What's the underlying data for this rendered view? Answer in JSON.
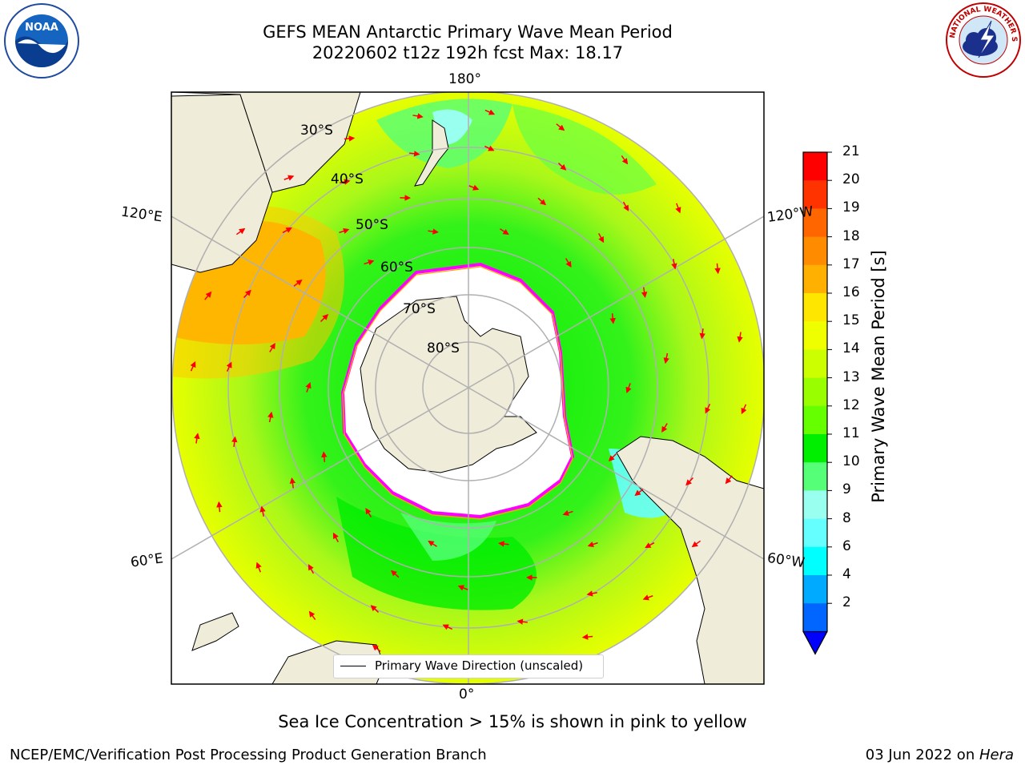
{
  "title": {
    "line1": "GEFS MEAN Antarctic Primary Wave Mean Period",
    "line2": "20220602 t12z 192h fcst   Max: 18.17"
  },
  "map": {
    "projection": "south-polar-stereographic",
    "longitude_labels": {
      "top": "180°",
      "bottom": "0°",
      "upper_left": "120°E",
      "upper_right": "120°W",
      "lower_left": "60°E",
      "lower_right": "60°W"
    },
    "latitude_labels": [
      "30°S",
      "40°S",
      "50°S",
      "60°S",
      "70°S",
      "80°S"
    ],
    "legend_label": "Primary Wave Direction (unscaled)",
    "arrow_color": "#ff0000",
    "land_color": "#efecd9",
    "ice_colors": [
      "#ff00ff",
      "#ffa500",
      "#ffff00"
    ]
  },
  "colorbar": {
    "label": "Primary Wave Mean Period [s]",
    "ticks": [
      "21",
      "20",
      "19",
      "18",
      "17",
      "16",
      "15",
      "14",
      "13",
      "12",
      "11",
      "10",
      "9",
      "8",
      "6",
      "4",
      "2"
    ],
    "colors": [
      "#ff0000",
      "#ff3300",
      "#ff6600",
      "#ff8c00",
      "#ffb000",
      "#ffe600",
      "#f0ff00",
      "#ccff00",
      "#99ff00",
      "#66ff00",
      "#00ee00",
      "#55ff77",
      "#99ffee",
      "#66ffff",
      "#00ffff",
      "#00aaff",
      "#0066ff"
    ],
    "extend_color": "#0000ff"
  },
  "subtitle": "Sea Ice Concentration > 15% is shown in pink to yellow",
  "footer": {
    "left": "NCEP/EMC/Verification Post Processing Product Generation Branch",
    "date": "03 Jun 2022 on ",
    "machine": "Hera"
  },
  "logos": {
    "left_text": "NOAA",
    "right_text": "NATIONAL WEATHER SERVICE"
  }
}
